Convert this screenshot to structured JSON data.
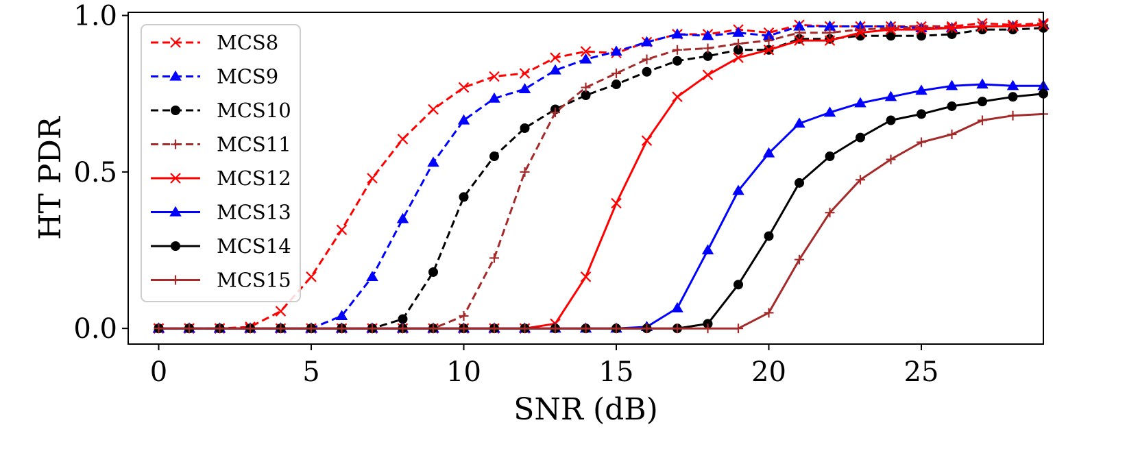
{
  "chart_data": {
    "type": "line",
    "title": "",
    "xlabel": "SNR (dB)",
    "ylabel": "HT PDR",
    "xlim": [
      -1,
      29
    ],
    "ylim": [
      -0.05,
      1.01
    ],
    "xticks": [
      0,
      5,
      10,
      15,
      20,
      25
    ],
    "yticks": [
      0.0,
      0.5,
      1.0
    ],
    "xtick_labels": [
      "0",
      "5",
      "10",
      "15",
      "20",
      "25"
    ],
    "ytick_labels": [
      "0.0",
      "0.5",
      "1.0"
    ],
    "grid": false,
    "legend_position": "upper-left",
    "x": [
      0,
      1,
      2,
      3,
      4,
      5,
      6,
      7,
      8,
      9,
      10,
      11,
      12,
      13,
      14,
      15,
      16,
      17,
      18,
      19,
      20,
      21,
      22,
      23,
      24,
      25,
      26,
      27,
      28,
      29
    ],
    "series": [
      {
        "name": "MCS8",
        "color": "#ff0000",
        "linestyle": "dashed",
        "marker": "x",
        "values": [
          0,
          0,
          0,
          0.005,
          0.055,
          0.165,
          0.315,
          0.48,
          0.605,
          0.7,
          0.77,
          0.805,
          0.815,
          0.865,
          0.885,
          0.88,
          0.915,
          0.94,
          0.94,
          0.955,
          0.945,
          0.97,
          0.965,
          0.965,
          0.965,
          0.965,
          0.965,
          0.975,
          0.97,
          0.975
        ]
      },
      {
        "name": "MCS9",
        "color": "#0000ff",
        "linestyle": "dashed",
        "marker": "triangle",
        "values": [
          0,
          0,
          0,
          0,
          0,
          0,
          0.04,
          0.165,
          0.35,
          0.53,
          0.665,
          0.735,
          0.765,
          0.825,
          0.86,
          0.885,
          0.915,
          0.94,
          0.935,
          0.945,
          0.935,
          0.965,
          0.965,
          0.965,
          0.965,
          0.96,
          0.96,
          0.965,
          0.965,
          0.97
        ]
      },
      {
        "name": "MCS10",
        "color": "#000000",
        "linestyle": "dashed",
        "marker": "circle",
        "values": [
          0,
          0,
          0,
          0,
          0,
          0,
          0,
          0,
          0.03,
          0.18,
          0.42,
          0.55,
          0.64,
          0.7,
          0.745,
          0.78,
          0.82,
          0.855,
          0.87,
          0.89,
          0.89,
          0.925,
          0.925,
          0.935,
          0.935,
          0.935,
          0.94,
          0.955,
          0.955,
          0.96
        ]
      },
      {
        "name": "MCS11",
        "color": "#a52a2a",
        "linestyle": "dashed",
        "marker": "plus",
        "values": [
          0,
          0,
          0,
          0,
          0,
          0,
          0,
          0,
          0,
          0,
          0.04,
          0.225,
          0.5,
          0.69,
          0.77,
          0.815,
          0.86,
          0.89,
          0.895,
          0.91,
          0.92,
          0.945,
          0.945,
          0.955,
          0.96,
          0.96,
          0.96,
          0.965,
          0.965,
          0.97
        ]
      },
      {
        "name": "MCS12",
        "color": "#ff0000",
        "linestyle": "solid",
        "marker": "x",
        "values": [
          0,
          0,
          0,
          0,
          0,
          0,
          0,
          0,
          0,
          0,
          0,
          0,
          0,
          0.015,
          0.165,
          0.4,
          0.6,
          0.74,
          0.81,
          0.865,
          0.89,
          0.92,
          0.92,
          0.945,
          0.955,
          0.955,
          0.96,
          0.965,
          0.965,
          0.97
        ]
      },
      {
        "name": "MCS13",
        "color": "#0000ff",
        "linestyle": "solid",
        "marker": "triangle",
        "values": [
          0,
          0,
          0,
          0,
          0,
          0,
          0,
          0,
          0,
          0,
          0,
          0,
          0,
          0,
          0,
          0,
          0.005,
          0.065,
          0.25,
          0.44,
          0.56,
          0.655,
          0.69,
          0.72,
          0.74,
          0.76,
          0.775,
          0.78,
          0.775,
          0.775
        ]
      },
      {
        "name": "MCS14",
        "color": "#000000",
        "linestyle": "solid",
        "marker": "circle",
        "values": [
          0,
          0,
          0,
          0,
          0,
          0,
          0,
          0,
          0,
          0,
          0,
          0,
          0,
          0,
          0,
          0,
          0,
          0,
          0.015,
          0.14,
          0.295,
          0.465,
          0.55,
          0.61,
          0.665,
          0.685,
          0.71,
          0.725,
          0.74,
          0.75
        ]
      },
      {
        "name": "MCS15",
        "color": "#a52a2a",
        "linestyle": "solid",
        "marker": "plus",
        "values": [
          0,
          0,
          0,
          0,
          0,
          0,
          0,
          0,
          0,
          0,
          0,
          0,
          0,
          0,
          0,
          0,
          0,
          0,
          0,
          0,
          0.05,
          0.22,
          0.37,
          0.475,
          0.54,
          0.595,
          0.62,
          0.665,
          0.68,
          0.685
        ]
      }
    ]
  }
}
